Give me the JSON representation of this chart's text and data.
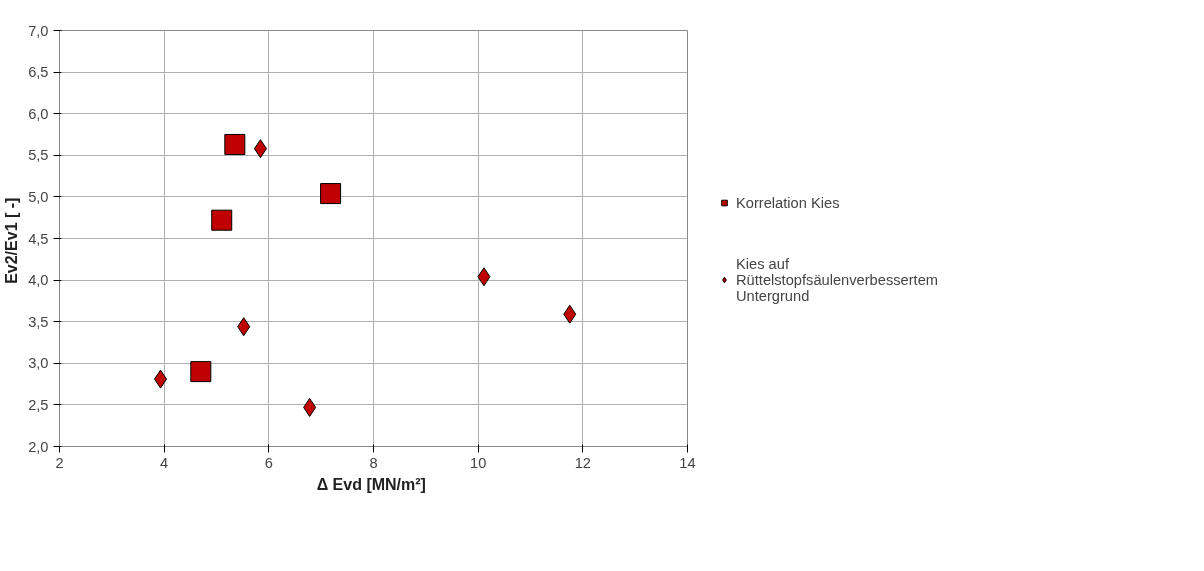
{
  "chart_data": {
    "type": "scatter",
    "xlabel": "Δ Evd  [MN/m²]",
    "ylabel": "Ev2/Ev1  [ -]",
    "series": [
      {
        "name": "Korrelation Kies",
        "color": "#c00000",
        "marker": "square",
        "x": [
          5.35,
          5.1,
          7.18,
          4.7
        ],
        "values": [
          5.63,
          4.72,
          5.04,
          2.9
        ]
      },
      {
        "name": "Kies auf Rüttelstopfsäulenverbessertem Untergrund",
        "color": "#c00000",
        "marker": "diamond",
        "x": [
          5.84,
          5.52,
          3.93,
          6.78,
          10.11,
          11.75
        ],
        "values": [
          5.58,
          3.44,
          2.81,
          2.47,
          4.04,
          3.59
        ]
      }
    ],
    "xlim": [
      2,
      14
    ],
    "xticks": [
      2,
      4,
      6,
      8,
      10,
      12,
      14
    ],
    "ylim": [
      2,
      7
    ],
    "yticks": [
      {
        "value": 2,
        "label": "2,0"
      },
      {
        "value": 2.5,
        "label": "2,5"
      },
      {
        "value": 3,
        "label": "3,0"
      },
      {
        "value": 3.5,
        "label": "3,5"
      },
      {
        "value": 4,
        "label": "4,0"
      },
      {
        "value": 4.5,
        "label": "4,5"
      },
      {
        "value": 5,
        "label": "5,0"
      },
      {
        "value": 5.5,
        "label": "5,5"
      },
      {
        "value": 6,
        "label": "6,0"
      },
      {
        "value": 6.5,
        "label": "6,5"
      },
      {
        "value": 7,
        "label": "7,0"
      }
    ],
    "grid": true,
    "legend": "right"
  }
}
